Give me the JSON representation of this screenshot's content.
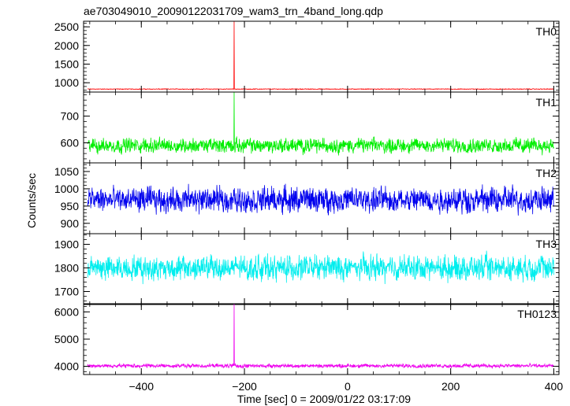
{
  "chart_data": {
    "type": "line",
    "title": "ae703049010_20090122031709_wam3_trn_4band_long.qdp",
    "xlabel": "Time [sec] 0 = 2009/01/22 03:17:09",
    "ylabel": "Counts/sec",
    "xlim": [
      -512,
      410
    ],
    "x_ticks": [
      -400,
      -200,
      0,
      200,
      400
    ],
    "series": [
      {
        "name": "TH0",
        "color": "#ff0000",
        "ylim": [
          750,
          2650
        ],
        "y_ticks": [
          1000,
          1500,
          2000,
          2500
        ],
        "baseline": 830,
        "noise_amplitude": 15,
        "spike": {
          "x": -220,
          "y": 2650
        }
      },
      {
        "name": "TH1",
        "color": "#00ee00",
        "ylim": [
          525,
          790
        ],
        "y_ticks": [
          600,
          700
        ],
        "baseline": 590,
        "noise_amplitude": 45,
        "spike": {
          "x": -220,
          "y": 790
        }
      },
      {
        "name": "TH2",
        "color": "#0000ee",
        "ylim": [
          870,
          1075
        ],
        "y_ticks": [
          900,
          950,
          1000,
          1050
        ],
        "baseline": 968,
        "noise_amplitude": 60,
        "spike": null
      },
      {
        "name": "TH3",
        "color": "#00eeee",
        "ylim": [
          1645,
          1945
        ],
        "y_ticks": [
          1700,
          1800,
          1900
        ],
        "baseline": 1800,
        "noise_amplitude": 85,
        "spike": null
      },
      {
        "name": "TH0123",
        "color": "#ee00ee",
        "ylim": [
          3700,
          6300
        ],
        "y_ticks": [
          4000,
          5000,
          6000
        ],
        "baseline": 4020,
        "noise_amplitude": 120,
        "spike": {
          "x": -220,
          "y": 6300
        }
      }
    ]
  }
}
